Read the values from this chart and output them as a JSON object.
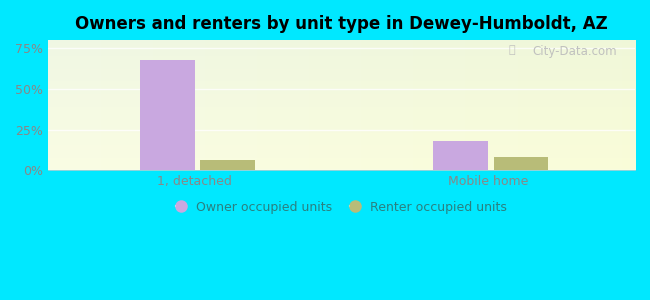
{
  "title": "Owners and renters by unit type in Dewey-Humboldt, AZ",
  "categories": [
    "1, detached",
    "Mobile home"
  ],
  "owner_values": [
    68,
    18
  ],
  "renter_values": [
    6,
    8
  ],
  "owner_color": "#c9a8e0",
  "renter_color": "#b8bc78",
  "yticks": [
    0,
    25,
    50,
    75
  ],
  "ytick_labels": [
    "0%",
    "25%",
    "50%",
    "75%"
  ],
  "ylim": [
    0,
    80
  ],
  "outer_bg": "#00e8ff",
  "bar_width": 0.28,
  "watermark": "City-Data.com",
  "tick_color": "#888888",
  "legend_text_color": "#2a8080",
  "grid_color": "#ddeecc"
}
